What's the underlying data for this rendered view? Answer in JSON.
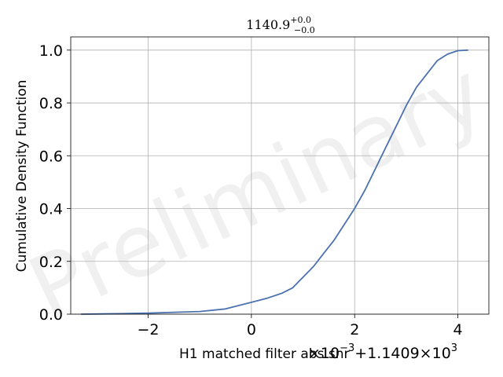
{
  "chart_data": {
    "type": "line",
    "title": {
      "value": "1140.9",
      "sup": "+0.0",
      "sub": "−0.0"
    },
    "xlabel": "H1 matched filter abs snr",
    "ylabel": "Cumulative Density Function",
    "x_offset_text": {
      "scale": "×10",
      "scale_exp": "−3",
      "offset": "+1.1409×10",
      "offset_exp": "3"
    },
    "watermark": "Preliminary",
    "xlim": [
      -3.5,
      4.6
    ],
    "ylim": [
      0.0,
      1.05
    ],
    "xticks": [
      -2,
      0,
      2,
      4
    ],
    "xtick_labels": [
      "−2",
      "0",
      "2",
      "4"
    ],
    "yticks": [
      0.0,
      0.2,
      0.4,
      0.6,
      0.8,
      1.0
    ],
    "ytick_labels": [
      "0.0",
      "0.2",
      "0.4",
      "0.6",
      "0.8",
      "1.0"
    ],
    "grid": true,
    "line_color": "#4c72b0",
    "series": [
      {
        "x": [
          -3.3,
          -2.5,
          -2.0,
          -1.5,
          -1.0,
          -0.5,
          -0.3,
          0.0,
          0.3,
          0.6,
          0.8,
          1.0,
          1.2,
          1.4,
          1.6,
          1.8,
          2.0,
          2.2,
          2.4,
          2.6,
          2.8,
          3.0,
          3.2,
          3.4,
          3.6,
          3.8,
          4.0,
          4.2
        ],
        "y": [
          0.0,
          0.002,
          0.004,
          0.007,
          0.01,
          0.02,
          0.03,
          0.045,
          0.06,
          0.08,
          0.1,
          0.14,
          0.18,
          0.23,
          0.28,
          0.34,
          0.4,
          0.47,
          0.55,
          0.63,
          0.71,
          0.79,
          0.86,
          0.91,
          0.96,
          0.985,
          0.998,
          1.0
        ]
      }
    ]
  }
}
